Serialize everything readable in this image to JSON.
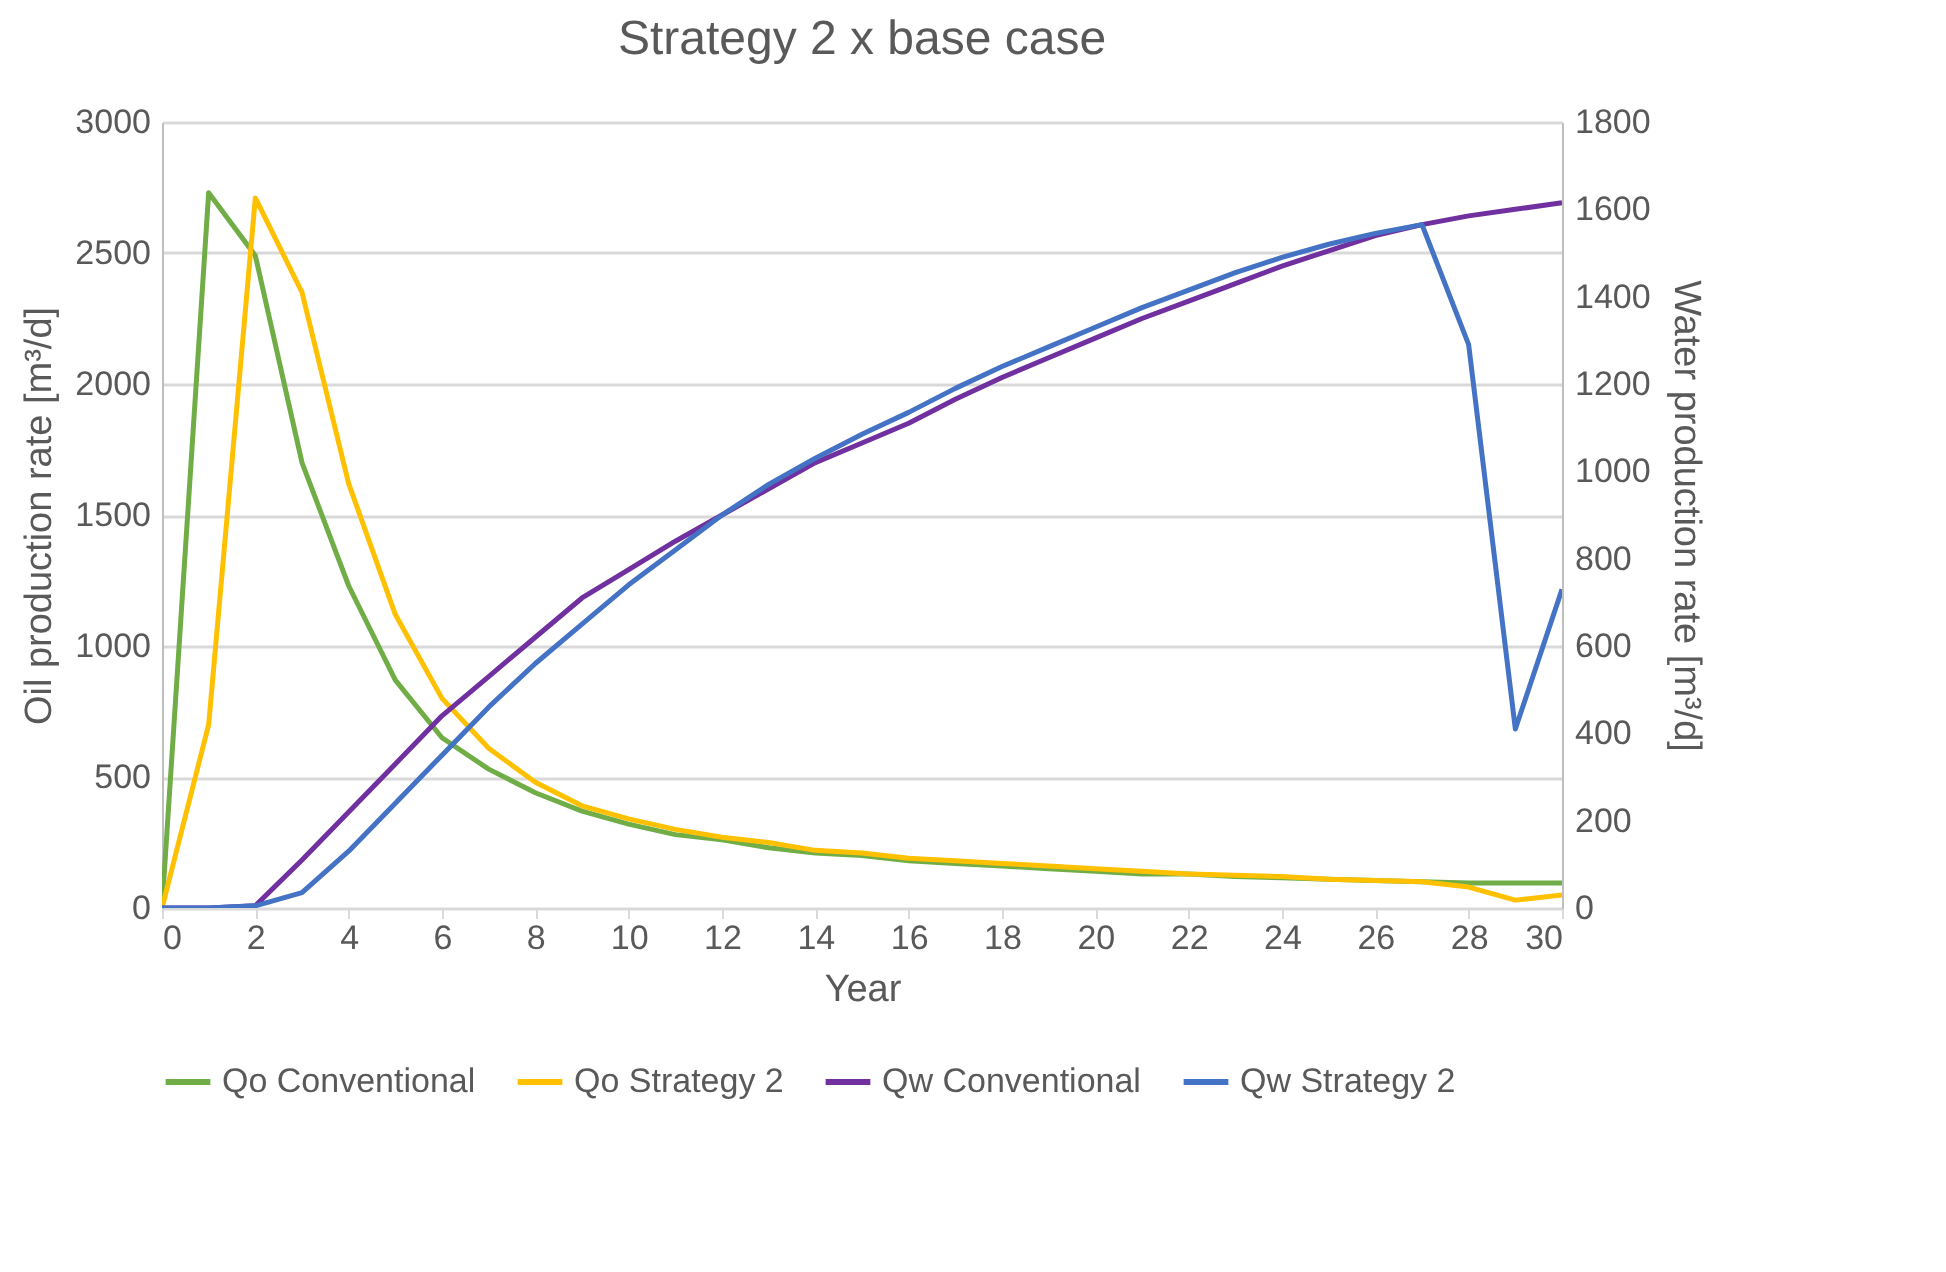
{
  "chart_data": {
    "type": "line",
    "title": "Strategy 2 x base case",
    "xlabel": "Year",
    "ylabel": "Oil production rate [m³/d]",
    "y2label": "Water production rate [m³/d]",
    "x": [
      0,
      1,
      2,
      3,
      4,
      5,
      6,
      7,
      8,
      9,
      10,
      11,
      12,
      13,
      14,
      15,
      16,
      17,
      18,
      19,
      20,
      21,
      22,
      23,
      24,
      25,
      26,
      27,
      28,
      29,
      30
    ],
    "xlim": [
      0,
      30
    ],
    "xticks": [
      0,
      2,
      4,
      6,
      8,
      10,
      12,
      14,
      16,
      18,
      20,
      22,
      24,
      26,
      28,
      30
    ],
    "ylim": [
      0,
      3000
    ],
    "yticks": [
      0,
      500,
      1000,
      1500,
      2000,
      2500,
      3000
    ],
    "y2lim": [
      0,
      1800
    ],
    "y2ticks": [
      0,
      200,
      400,
      600,
      800,
      1000,
      1200,
      1400,
      1600,
      1800
    ],
    "grid": "y",
    "legend": "bottom",
    "marker": "none",
    "line_style": "solid",
    "series": [
      {
        "name": "Qo Conventional",
        "color": "#70ad47",
        "values": [
          0,
          2730,
          2490,
          1700,
          1230,
          870,
          650,
          530,
          440,
          370,
          320,
          280,
          260,
          230,
          210,
          200,
          180,
          170,
          160,
          150,
          140,
          130,
          130,
          120,
          115,
          110,
          105,
          100,
          95,
          95,
          95
        ]
      },
      {
        "name": "Qo Strategy 2",
        "color": "#ffc000",
        "values": [
          0,
          700,
          2710,
          2350,
          1620,
          1120,
          800,
          610,
          480,
          390,
          340,
          300,
          270,
          250,
          220,
          210,
          190,
          180,
          170,
          160,
          150,
          140,
          130,
          125,
          120,
          110,
          105,
          100,
          80,
          30,
          50
        ]
      },
      {
        "name": "Qw Conventional",
        "color": "#7030a0",
        "axis": "y2",
        "values": [
          0,
          0,
          5,
          110,
          220,
          330,
          440,
          530,
          620,
          710,
          775,
          840,
          900,
          960,
          1020,
          1065,
          1110,
          1165,
          1215,
          1260,
          1305,
          1350,
          1390,
          1430,
          1470,
          1505,
          1540,
          1565,
          1585,
          1600,
          1615
        ]
      },
      {
        "name": "Qw Strategy 2",
        "color": "#4472c4",
        "axis": "y2",
        "values": [
          0,
          0,
          5,
          35,
          130,
          240,
          350,
          460,
          560,
          650,
          740,
          820,
          900,
          970,
          1030,
          1085,
          1135,
          1190,
          1240,
          1285,
          1330,
          1375,
          1415,
          1455,
          1490,
          1520,
          1545,
          1565,
          1290,
          410,
          730
        ]
      }
    ]
  }
}
